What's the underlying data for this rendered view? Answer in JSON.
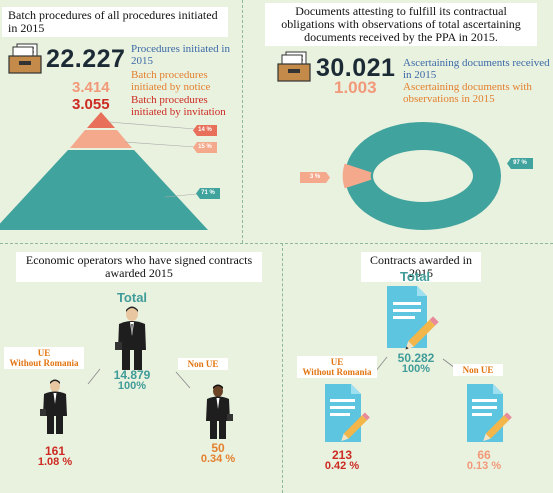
{
  "panel_procedures": {
    "title": "Batch procedures of all procedures initiated in 2015",
    "total": "22.227",
    "total_label": "Procedures initiated in 2015",
    "notice": "3.414",
    "notice_label": "Batch procedures initiated by notice",
    "invitation": "3.055",
    "invitation_label": "Batch procedures initiated by invitation",
    "pyramid_tags": {
      "top": "14 %",
      "middle": "15 %",
      "bottom": "71 %"
    },
    "colors": {
      "top": "#e86f59",
      "middle": "#f5a98c",
      "bottom": "#41a39d"
    }
  },
  "panel_documents": {
    "title": "Documents attesting to fulfill its contractual obligations with observations of total ascertaining documents received by the PPA in 2015.",
    "total": "30.021",
    "total_label": "Ascertaining documents received in 2015",
    "observations": "1.003",
    "observations_label": "Ascertaining documents with observations in 2015",
    "donut_tags": {
      "main": "97 %",
      "small": "3 %"
    },
    "colors": {
      "main": "#41a39d",
      "small": "#f5a98c"
    }
  },
  "panel_operators": {
    "title": "Economic operators who have signed contracts awarded 2015",
    "total_label": "Total",
    "total_value": "14.879",
    "total_pct": "100%",
    "ue_label_line1": "UE",
    "ue_label_line2": "Without Romania",
    "ue_value": "161",
    "ue_pct": "1.08 %",
    "nonue_label": "Non UE",
    "nonue_value": "50",
    "nonue_pct": "0.34 %"
  },
  "panel_contracts": {
    "title": "Contracts awarded in 2015",
    "total_label": "Total",
    "total_value": "50.282",
    "total_pct": "100%",
    "ue_label_line1": "UE",
    "ue_label_line2": "Without Romania",
    "ue_value": "213",
    "ue_pct": "0.42 %",
    "nonue_label": "Non UE",
    "nonue_value": "66",
    "nonue_pct": "0.13 %"
  },
  "icons": [
    "folder-icon",
    "businessman-icon",
    "document-pencil-icon"
  ]
}
